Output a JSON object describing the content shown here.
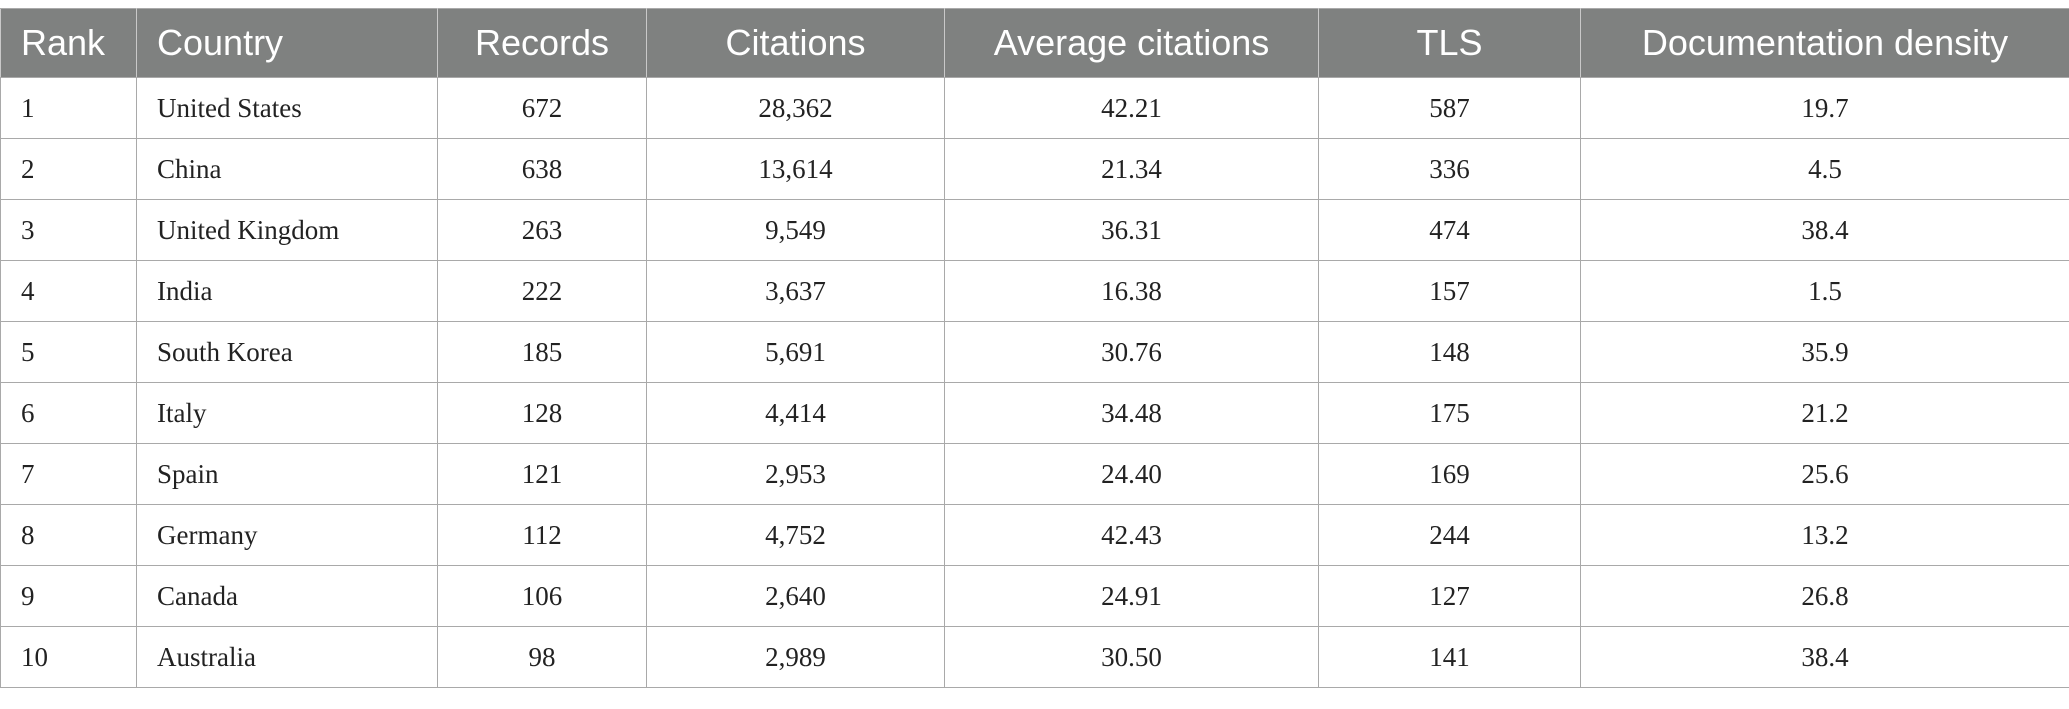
{
  "table": {
    "headers": {
      "rank": "Rank",
      "country": "Country",
      "records": "Records",
      "citations": "Citations",
      "average_citations": "Average citations",
      "tls": "TLS",
      "documentation_density": "Documentation density"
    },
    "rows": [
      {
        "rank": "1",
        "country": "United States",
        "records": "672",
        "citations": "28,362",
        "average_citations": "42.21",
        "tls": "587",
        "documentation_density": "19.7"
      },
      {
        "rank": "2",
        "country": "China",
        "records": "638",
        "citations": "13,614",
        "average_citations": "21.34",
        "tls": "336",
        "documentation_density": "4.5"
      },
      {
        "rank": "3",
        "country": "United Kingdom",
        "records": "263",
        "citations": "9,549",
        "average_citations": "36.31",
        "tls": "474",
        "documentation_density": "38.4"
      },
      {
        "rank": "4",
        "country": "India",
        "records": "222",
        "citations": "3,637",
        "average_citations": "16.38",
        "tls": "157",
        "documentation_density": "1.5"
      },
      {
        "rank": "5",
        "country": "South Korea",
        "records": "185",
        "citations": "5,691",
        "average_citations": "30.76",
        "tls": "148",
        "documentation_density": "35.9"
      },
      {
        "rank": "6",
        "country": "Italy",
        "records": "128",
        "citations": "4,414",
        "average_citations": "34.48",
        "tls": "175",
        "documentation_density": "21.2"
      },
      {
        "rank": "7",
        "country": "Spain",
        "records": "121",
        "citations": "2,953",
        "average_citations": "24.40",
        "tls": "169",
        "documentation_density": "25.6"
      },
      {
        "rank": "8",
        "country": "Germany",
        "records": "112",
        "citations": "4,752",
        "average_citations": "42.43",
        "tls": "244",
        "documentation_density": "13.2"
      },
      {
        "rank": "9",
        "country": "Canada",
        "records": "106",
        "citations": "2,640",
        "average_citations": "24.91",
        "tls": "127",
        "documentation_density": "26.8"
      },
      {
        "rank": "10",
        "country": "Australia",
        "records": "98",
        "citations": "2,989",
        "average_citations": "30.50",
        "tls": "141",
        "documentation_density": "38.4"
      }
    ]
  },
  "colors": {
    "header_background": "#7f8180",
    "header_text": "#ffffff",
    "grid_line": "#a9a9a9"
  }
}
